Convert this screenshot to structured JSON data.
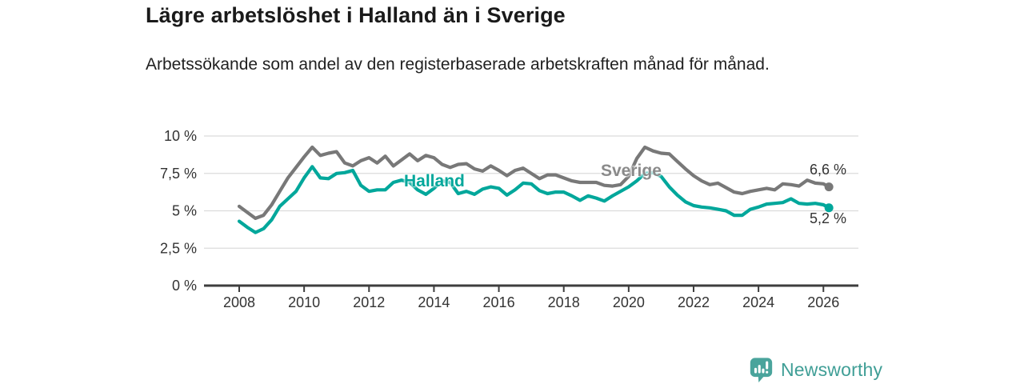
{
  "header": {
    "title": "Lägre arbetslöshet i Halland än i Sverige",
    "subtitle": "Arbetssökande som andel av den registerbaserade arbetskraften månad för månad."
  },
  "chart_data": {
    "type": "line",
    "title": "Lägre arbetslöshet i Halland än i Sverige",
    "subtitle": "Arbetssökande som andel av den registerbaserade arbetskraften månad för månad.",
    "xlabel": "",
    "ylabel": "",
    "xlim": [
      2007.3,
      2027.1
    ],
    "ylim": [
      0,
      10
    ],
    "grid": true,
    "legend_position": "inline-labels",
    "x_ticks": [
      2008,
      2010,
      2012,
      2014,
      2016,
      2018,
      2020,
      2022,
      2024,
      2026
    ],
    "y_ticks": [
      {
        "value": 0,
        "label": "0 %"
      },
      {
        "value": 2.5,
        "label": "2,5 %"
      },
      {
        "value": 5,
        "label": "5 %"
      },
      {
        "value": 7.5,
        "label": "7,5 %"
      },
      {
        "value": 10,
        "label": "10 %"
      }
    ],
    "series": [
      {
        "name": "Sverige",
        "color": "#787878",
        "end_label": "6,6 %",
        "end_value": 6.6,
        "points": [
          [
            2008,
            5.3
          ],
          [
            2008.25,
            4.9
          ],
          [
            2008.5,
            4.5
          ],
          [
            2008.75,
            4.7
          ],
          [
            2009,
            5.4
          ],
          [
            2009.25,
            6.3
          ],
          [
            2009.5,
            7.2
          ],
          [
            2009.75,
            7.9
          ],
          [
            2010,
            8.6
          ],
          [
            2010.25,
            9.25
          ],
          [
            2010.5,
            8.7
          ],
          [
            2010.75,
            8.85
          ],
          [
            2011,
            8.95
          ],
          [
            2011.25,
            8.2
          ],
          [
            2011.5,
            8.0
          ],
          [
            2011.75,
            8.35
          ],
          [
            2012,
            8.55
          ],
          [
            2012.25,
            8.2
          ],
          [
            2012.5,
            8.65
          ],
          [
            2012.75,
            8.0
          ],
          [
            2013,
            8.4
          ],
          [
            2013.25,
            8.8
          ],
          [
            2013.5,
            8.35
          ],
          [
            2013.75,
            8.7
          ],
          [
            2014,
            8.55
          ],
          [
            2014.25,
            8.1
          ],
          [
            2014.5,
            7.9
          ],
          [
            2014.75,
            8.1
          ],
          [
            2015,
            8.15
          ],
          [
            2015.25,
            7.8
          ],
          [
            2015.5,
            7.65
          ],
          [
            2015.75,
            8.0
          ],
          [
            2016,
            7.7
          ],
          [
            2016.25,
            7.35
          ],
          [
            2016.5,
            7.7
          ],
          [
            2016.75,
            7.85
          ],
          [
            2017,
            7.5
          ],
          [
            2017.25,
            7.15
          ],
          [
            2017.5,
            7.4
          ],
          [
            2017.75,
            7.4
          ],
          [
            2018,
            7.2
          ],
          [
            2018.25,
            7.0
          ],
          [
            2018.5,
            6.9
          ],
          [
            2018.75,
            6.9
          ],
          [
            2019,
            6.9
          ],
          [
            2019.25,
            6.7
          ],
          [
            2019.5,
            6.65
          ],
          [
            2019.75,
            6.75
          ],
          [
            2020,
            7.3
          ],
          [
            2020.25,
            8.5
          ],
          [
            2020.5,
            9.25
          ],
          [
            2020.75,
            9.0
          ],
          [
            2021,
            8.85
          ],
          [
            2021.25,
            8.8
          ],
          [
            2021.5,
            8.3
          ],
          [
            2021.75,
            7.8
          ],
          [
            2022,
            7.35
          ],
          [
            2022.25,
            7.0
          ],
          [
            2022.5,
            6.75
          ],
          [
            2022.75,
            6.85
          ],
          [
            2023,
            6.55
          ],
          [
            2023.25,
            6.25
          ],
          [
            2023.5,
            6.15
          ],
          [
            2023.75,
            6.3
          ],
          [
            2024,
            6.4
          ],
          [
            2024.25,
            6.5
          ],
          [
            2024.5,
            6.4
          ],
          [
            2024.75,
            6.8
          ],
          [
            2025,
            6.75
          ],
          [
            2025.25,
            6.65
          ],
          [
            2025.5,
            7.05
          ],
          [
            2025.75,
            6.85
          ],
          [
            2026,
            6.8
          ],
          [
            2026.17,
            6.6
          ]
        ]
      },
      {
        "name": "Halland",
        "color": "#00a79b",
        "end_label": "5,2 %",
        "end_value": 5.2,
        "points": [
          [
            2008,
            4.3
          ],
          [
            2008.25,
            3.9
          ],
          [
            2008.5,
            3.55
          ],
          [
            2008.75,
            3.8
          ],
          [
            2009,
            4.4
          ],
          [
            2009.25,
            5.3
          ],
          [
            2009.5,
            5.8
          ],
          [
            2009.75,
            6.3
          ],
          [
            2010,
            7.2
          ],
          [
            2010.25,
            7.95
          ],
          [
            2010.5,
            7.2
          ],
          [
            2010.75,
            7.15
          ],
          [
            2011,
            7.5
          ],
          [
            2011.25,
            7.55
          ],
          [
            2011.5,
            7.7
          ],
          [
            2011.75,
            6.7
          ],
          [
            2012,
            6.3
          ],
          [
            2012.25,
            6.4
          ],
          [
            2012.5,
            6.4
          ],
          [
            2012.75,
            6.9
          ],
          [
            2013,
            7.05
          ],
          [
            2013.25,
            6.9
          ],
          [
            2013.5,
            6.4
          ],
          [
            2013.75,
            6.1
          ],
          [
            2014,
            6.5
          ],
          [
            2014.25,
            7.0
          ],
          [
            2014.5,
            6.9
          ],
          [
            2014.75,
            6.15
          ],
          [
            2015,
            6.3
          ],
          [
            2015.25,
            6.1
          ],
          [
            2015.5,
            6.45
          ],
          [
            2015.75,
            6.6
          ],
          [
            2016,
            6.5
          ],
          [
            2016.25,
            6.05
          ],
          [
            2016.5,
            6.4
          ],
          [
            2016.75,
            6.85
          ],
          [
            2017,
            6.8
          ],
          [
            2017.25,
            6.35
          ],
          [
            2017.5,
            6.15
          ],
          [
            2017.75,
            6.25
          ],
          [
            2018,
            6.25
          ],
          [
            2018.25,
            6.0
          ],
          [
            2018.5,
            5.7
          ],
          [
            2018.75,
            6.0
          ],
          [
            2019,
            5.85
          ],
          [
            2019.25,
            5.65
          ],
          [
            2019.5,
            6.0
          ],
          [
            2019.75,
            6.3
          ],
          [
            2020,
            6.6
          ],
          [
            2020.25,
            7.0
          ],
          [
            2020.5,
            7.5
          ],
          [
            2020.75,
            7.55
          ],
          [
            2021,
            7.3
          ],
          [
            2021.25,
            6.6
          ],
          [
            2021.5,
            6.05
          ],
          [
            2021.75,
            5.6
          ],
          [
            2022,
            5.35
          ],
          [
            2022.25,
            5.25
          ],
          [
            2022.5,
            5.2
          ],
          [
            2022.75,
            5.1
          ],
          [
            2023,
            5.0
          ],
          [
            2023.25,
            4.7
          ],
          [
            2023.5,
            4.7
          ],
          [
            2023.75,
            5.1
          ],
          [
            2024,
            5.25
          ],
          [
            2024.25,
            5.45
          ],
          [
            2024.5,
            5.5
          ],
          [
            2024.75,
            5.55
          ],
          [
            2025,
            5.8
          ],
          [
            2025.25,
            5.5
          ],
          [
            2025.5,
            5.45
          ],
          [
            2025.75,
            5.5
          ],
          [
            2026,
            5.4
          ],
          [
            2026.17,
            5.2
          ]
        ]
      }
    ],
    "colors": {
      "grid": "#dcdcdc",
      "axis": "#3d3d3d",
      "tick_text": "#333333"
    }
  },
  "branding": {
    "logo_text": "Newsworthy",
    "logo_color": "#4aa49c"
  }
}
